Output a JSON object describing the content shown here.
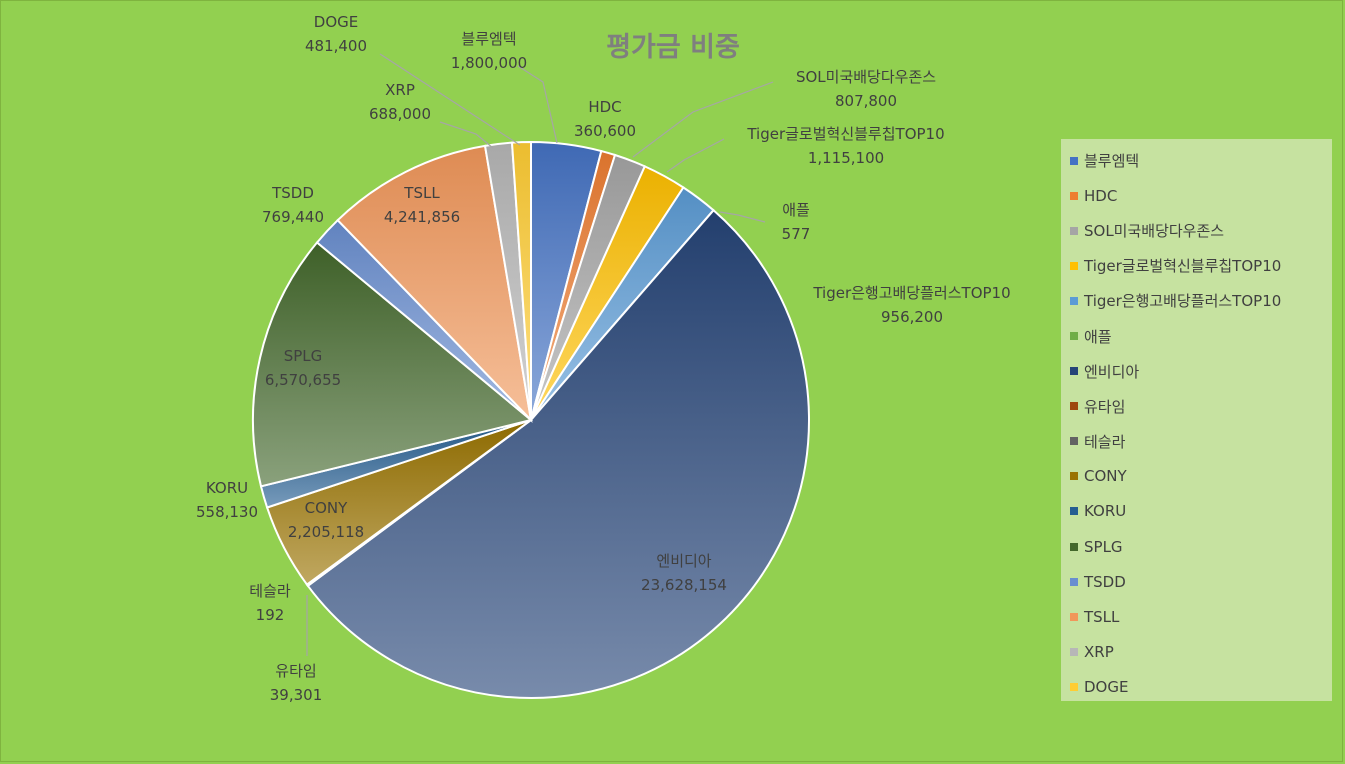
{
  "chart_data": {
    "type": "pie",
    "title": "평가금 비중",
    "legend_position": "right",
    "slices": [
      {
        "name": "블루엠텍",
        "value": 1800000,
        "label": "1,800,000",
        "color": "#4472c4"
      },
      {
        "name": "HDC",
        "value": 360600,
        "label": "360,600",
        "color": "#ed7d31"
      },
      {
        "name": "SOL미국배당다우존스",
        "value": 807800,
        "label": "807,800",
        "color": "#a5a5a5"
      },
      {
        "name": "Tiger글로벌혁신블루칩TOP10",
        "value": 1115100,
        "label": "1,115,100",
        "color": "#ffc000"
      },
      {
        "name": "Tiger은행고배당플러스TOP10",
        "value": 956200,
        "label": "956,200",
        "color": "#5b9bd5"
      },
      {
        "name": "애플",
        "value": 577,
        "label": "577",
        "color": "#70ad47"
      },
      {
        "name": "엔비디아",
        "value": 23628154,
        "label": "23,628,154",
        "color": "#264478"
      },
      {
        "name": "유타임",
        "value": 39301,
        "label": "39,301",
        "color": "#9e480e"
      },
      {
        "name": "테슬라",
        "value": 192,
        "label": "192",
        "color": "#636363"
      },
      {
        "name": "CONY",
        "value": 2205118,
        "label": "2,205,118",
        "color": "#997300"
      },
      {
        "name": "KORU",
        "value": 558130,
        "label": "558,130",
        "color": "#255e91"
      },
      {
        "name": "SPLG",
        "value": 6570655,
        "label": "6,570,655",
        "color": "#43682b"
      },
      {
        "name": "TSDD",
        "value": 769440,
        "label": "769,440",
        "color": "#698ed0"
      },
      {
        "name": "TSLL",
        "value": 4241856,
        "label": "4,241,856",
        "color": "#f1975a"
      },
      {
        "name": "XRP",
        "value": 688000,
        "label": "688,000",
        "color": "#b7b7b7"
      },
      {
        "name": "DOGE",
        "value": 481400,
        "label": "481,400",
        "color": "#ffcd33"
      }
    ]
  }
}
